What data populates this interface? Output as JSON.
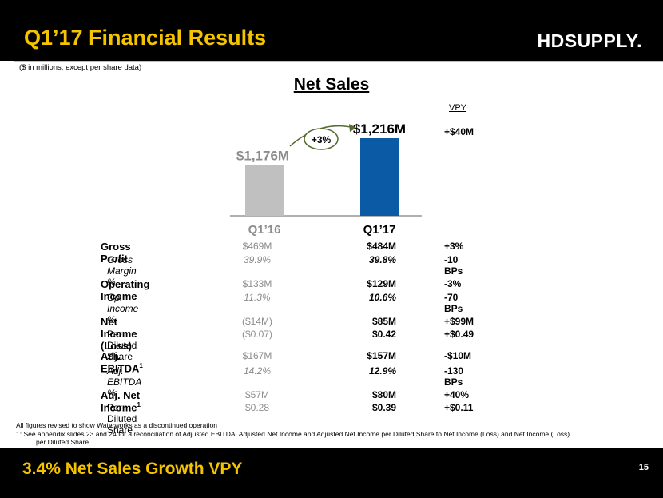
{
  "header": {
    "title": "Q1’17 Financial Results",
    "logo": "HDSUPPLY."
  },
  "subtitle": "($ in millions, except per share data)",
  "section_title": "Net Sales",
  "vpy_header": "VPY",
  "chart_data": {
    "type": "bar",
    "title": "Net Sales",
    "categories": [
      "Q1’16",
      "Q1’17"
    ],
    "values": [
      1176,
      1216
    ],
    "value_labels": [
      "$1,176M",
      "$1,216M"
    ],
    "colors": [
      "#c0c0c0",
      "#0b5aa5"
    ],
    "growth_label": "+3%",
    "vpy_label": "+$40M",
    "ylim": [
      0,
      1300
    ],
    "xlabel": "",
    "ylabel": ""
  },
  "metrics": [
    {
      "label": "Gross Profit",
      "q116": "$469M",
      "q117": "$484M",
      "vpy": "+3%"
    },
    {
      "label": "Gross Margin %",
      "q116": "39.9%",
      "q117": "39.8%",
      "vpy": "-10 BPs"
    },
    {
      "label": "Operating Income",
      "q116": "$133M",
      "q117": "$129M",
      "vpy": "-3%"
    },
    {
      "label": "Op. Income %",
      "q116": "11.3%",
      "q117": "10.6%",
      "vpy": "-70 BPs"
    },
    {
      "label": "Net Income (Loss)",
      "q116": "($14M)",
      "q117": "$85M",
      "vpy": "+$99M"
    },
    {
      "label": "Per Diluted Share",
      "q116": "($0.07)",
      "q117": "$0.42",
      "vpy": "+$0.49"
    },
    {
      "label": "Adj. EBITDA",
      "sup": "1",
      "q116": "$167M",
      "q117": "$157M",
      "vpy": "-$10M"
    },
    {
      "label": "Adj. EBITDA %",
      "q116": "14.2%",
      "q117": "12.9%",
      "vpy": "-130 BPs"
    },
    {
      "label": "Adj. Net Income",
      "sup": "1",
      "q116": "$57M",
      "q117": "$80M",
      "vpy": "+40%"
    },
    {
      "label": "Per Diluted Share",
      "q116": "$0.28",
      "q117": "$0.39",
      "vpy": "+$0.11"
    }
  ],
  "notes": {
    "line1": "All figures revised to show Waterworks as a discontinued operation",
    "line2": "1:   See appendix slides 23 and 24 for a reconciliation of Adjusted EBITDA, Adjusted Net Income and Adjusted Net Income per Diluted Share to Net Income (Loss) and Net Income (Loss)",
    "line3": "per Diluted Share"
  },
  "footer": {
    "text": "3.4% Net Sales Growth VPY",
    "page": "15"
  }
}
